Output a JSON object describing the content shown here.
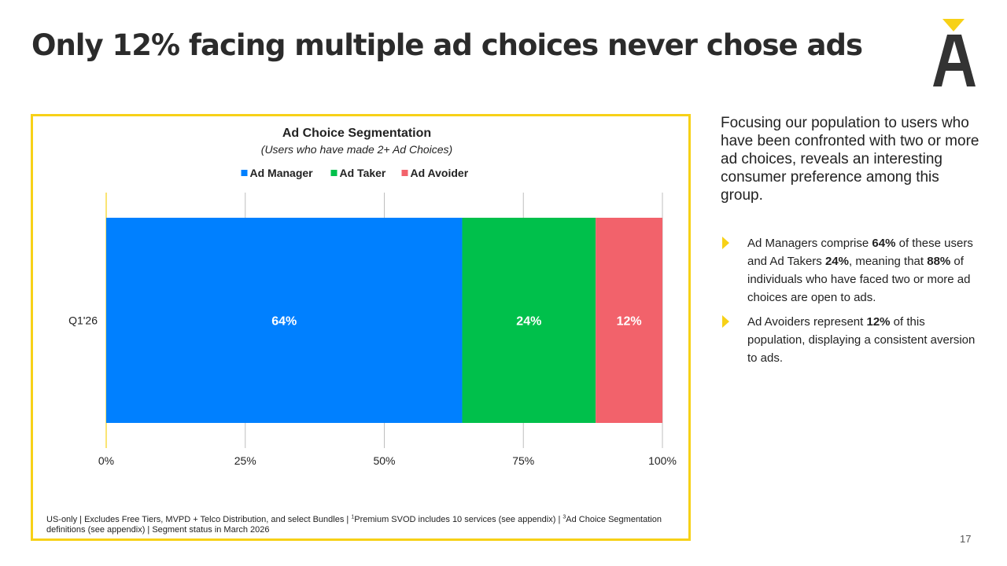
{
  "slide": {
    "title": "Only 12% facing multiple ad choices never chose ads",
    "page_number": "17"
  },
  "chart_data": {
    "type": "bar",
    "orientation": "horizontal",
    "stacked": true,
    "title": "Ad Choice Segmentation",
    "subtitle": "(Users who have made 2+ Ad Choices)",
    "categories": [
      "Q1'26"
    ],
    "series": [
      {
        "name": "Ad Manager",
        "values": [
          64
        ],
        "label": "64%",
        "color": "#0080ff"
      },
      {
        "name": "Ad Taker",
        "values": [
          24
        ],
        "label": "24%",
        "color": "#00c04b"
      },
      {
        "name": "Ad Avoider",
        "values": [
          12
        ],
        "label": "12%",
        "color": "#f2626b"
      }
    ],
    "xlim": [
      0,
      100
    ],
    "xticks": [
      0,
      25,
      50,
      75,
      100
    ],
    "xtick_labels": [
      "0%",
      "25%",
      "50%",
      "75%",
      "100%"
    ],
    "grid": true,
    "legend": "top-center"
  },
  "footnote": {
    "part1": "US-only | Excludes Free Tiers, MVPD + Telco Distribution, and select Bundles | ",
    "sup1": "1",
    "part2": "Premium SVOD includes 10 services (see appendix) | ",
    "sup2": "3",
    "part3": "Ad Choice Segmentation definitions (see appendix) | Segment status in March 2026"
  },
  "sidebar": {
    "intro": "Focusing our population to users who have been confronted with two or more ad choices, reveals an interesting consumer preference among this group.",
    "bullet1": {
      "t1": "Ad Managers comprise ",
      "b1": "64%",
      "t2": " of these users and Ad Takers ",
      "b2": "24%",
      "t3": ", meaning that ",
      "b3": "88%",
      "t4": " of individuals who have faced two or more ad choices are open to ads."
    },
    "bullet2": {
      "t1": "Ad Avoiders represent ",
      "b1": "12%",
      "t2": " of this population, displaying a consistent aversion to ads."
    }
  },
  "colors": {
    "accent": "#f7d117",
    "title": "#2b2b2b",
    "logo": "#333333"
  }
}
